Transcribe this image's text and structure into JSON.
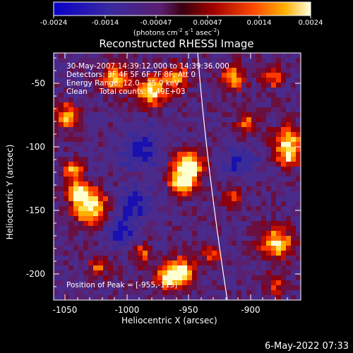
{
  "title": "Reconstructed RHESSI Image",
  "colorbar": {
    "ticks": [
      "-0.0024",
      "-0.0014",
      "-0.00047",
      "0.00047",
      "0.0014",
      "0.0024"
    ],
    "units_main": "(photons cm",
    "units_exp1": "-2",
    "units_mid1": " s",
    "units_exp2": "-1",
    "units_mid2": " asec",
    "units_exp3": "-2",
    "units_end": ")"
  },
  "info": {
    "line1": "30-May-2007 14:39:12.000 to 14:39:36.000",
    "line2": "Detectors: 3F 4F 5F 6F 7F 8F, Att 0",
    "line3": "Energy Range: 12.0 - 25.0 keV",
    "line4": "Clean     Total counts: 1.49E+03"
  },
  "peak_label": "Position of Peak = [-955,-113]",
  "axes": {
    "xlabel": "Heliocentric X (arcsec)",
    "ylabel": "Heliocentric Y (arcsec)",
    "xticks": [
      "-1050",
      "-1000",
      "-950",
      "-900"
    ],
    "yticks": [
      "-50",
      "-100",
      "-150",
      "-200"
    ],
    "x_range": [
      -1060,
      -868
    ],
    "y_range": [
      -23,
      -218
    ]
  },
  "timestamp": "6-May-2022 07:33"
}
